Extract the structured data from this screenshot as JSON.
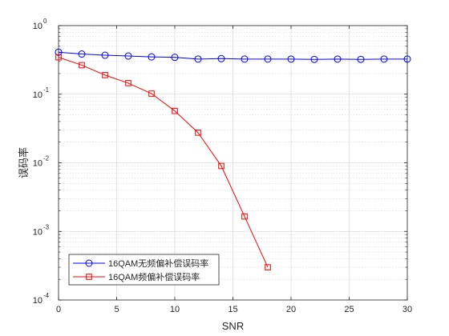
{
  "chart_data": {
    "type": "line",
    "xlabel": "SNR",
    "ylabel": "误码率",
    "xlim": [
      0,
      30
    ],
    "ylim": [
      0.0001,
      1
    ],
    "yscale": "log",
    "grid": true,
    "minor_grid": true,
    "legend_position": "bottom-left",
    "x_ticks": [
      0,
      5,
      10,
      15,
      20,
      25,
      30
    ],
    "x_tick_labels": [
      "0",
      "5",
      "10",
      "15",
      "20",
      "25",
      "30"
    ],
    "y_ticks": [
      {
        "value": 1,
        "base": "10",
        "exp": "0"
      },
      {
        "value": 0.1,
        "base": "10",
        "exp": "-1"
      },
      {
        "value": 0.01,
        "base": "10",
        "exp": "-2"
      },
      {
        "value": 0.001,
        "base": "10",
        "exp": "-3"
      },
      {
        "value": 0.0001,
        "base": "10",
        "exp": "-4"
      }
    ],
    "series": [
      {
        "name": "16QAM无频偏补偿误码率",
        "color": "#0000ff",
        "marker": "circle",
        "x": [
          0,
          2,
          4,
          6,
          8,
          10,
          12,
          14,
          16,
          18,
          20,
          22,
          24,
          26,
          28,
          30
        ],
        "y": [
          0.41,
          0.385,
          0.37,
          0.36,
          0.35,
          0.345,
          0.325,
          0.33,
          0.325,
          0.325,
          0.325,
          0.322,
          0.325,
          0.322,
          0.325,
          0.325
        ]
      },
      {
        "name": "16QAM频偏补偿误码率",
        "color": "#ff0000",
        "marker": "square",
        "x": [
          0,
          2,
          4,
          6,
          8,
          10,
          12,
          14,
          16,
          18
        ],
        "y": [
          0.345,
          0.265,
          0.19,
          0.145,
          0.102,
          0.057,
          0.0275,
          0.009,
          0.00165,
          0.0003
        ]
      }
    ]
  }
}
